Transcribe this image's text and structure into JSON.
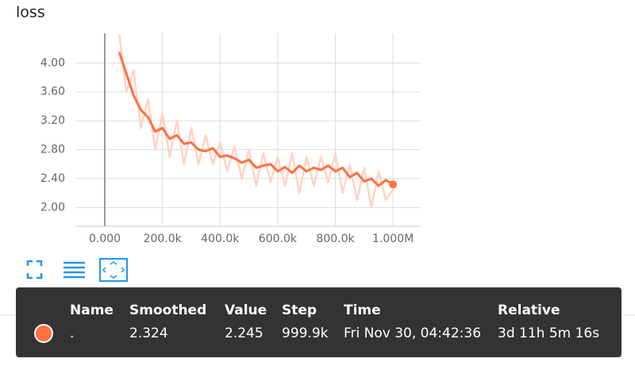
{
  "chart_data": {
    "type": "line",
    "title": "loss",
    "x": [
      50000,
      75000,
      100000,
      125000,
      150000,
      175000,
      200000,
      225000,
      250000,
      275000,
      300000,
      325000,
      350000,
      375000,
      400000,
      425000,
      450000,
      475000,
      500000,
      525000,
      550000,
      575000,
      600000,
      625000,
      650000,
      675000,
      700000,
      725000,
      750000,
      775000,
      800000,
      825000,
      850000,
      875000,
      900000,
      925000,
      950000,
      975000,
      1000000
    ],
    "series": [
      {
        "color": "#ffd3c4",
        "values": [
          4.4,
          3.6,
          3.9,
          3.1,
          3.5,
          2.8,
          3.3,
          2.7,
          3.2,
          2.6,
          3.1,
          2.6,
          3.0,
          2.6,
          2.9,
          2.5,
          2.85,
          2.4,
          2.8,
          2.3,
          2.75,
          2.35,
          2.7,
          2.3,
          2.75,
          2.2,
          2.7,
          2.3,
          2.7,
          2.35,
          2.75,
          2.2,
          2.6,
          2.1,
          2.55,
          2.0,
          2.5,
          2.1,
          2.25
        ]
      },
      {
        "color": "#ff7043",
        "values": [
          4.15,
          3.85,
          3.55,
          3.35,
          3.25,
          3.05,
          3.1,
          2.95,
          3.0,
          2.88,
          2.9,
          2.8,
          2.78,
          2.82,
          2.7,
          2.72,
          2.68,
          2.62,
          2.66,
          2.55,
          2.58,
          2.6,
          2.5,
          2.56,
          2.48,
          2.58,
          2.5,
          2.55,
          2.52,
          2.58,
          2.5,
          2.55,
          2.42,
          2.48,
          2.36,
          2.4,
          2.3,
          2.38,
          2.32
        ]
      }
    ],
    "xlim": [
      -102000,
      1096000
    ],
    "xticks": [
      {
        "value": 0,
        "label": "0.000"
      },
      {
        "value": 200000,
        "label": "200.0k"
      },
      {
        "value": 400000,
        "label": "400.0k"
      },
      {
        "value": 600000,
        "label": "600.0k"
      },
      {
        "value": 800000,
        "label": "800.0k"
      },
      {
        "value": 1000000,
        "label": "1.000M"
      }
    ],
    "ylim": [
      1.74,
      4.41
    ],
    "yticks": [
      {
        "value": 2,
        "label": "2.00"
      },
      {
        "value": 2.4,
        "label": "2.40"
      },
      {
        "value": 2.8,
        "label": "2.80"
      },
      {
        "value": 3.2,
        "label": "3.20"
      },
      {
        "value": 3.6,
        "label": "3.60"
      },
      {
        "value": 4,
        "label": "4.00"
      }
    ],
    "grid": true
  },
  "tooltip": {
    "headers": [
      "Name",
      "Smoothed",
      "Value",
      "Step",
      "Time",
      "Relative"
    ],
    "row": [
      ".",
      "2.324",
      "2.245",
      "999.9k",
      "Fri Nov 30, 04:42:36",
      "3d 11h 5m 16s"
    ]
  }
}
